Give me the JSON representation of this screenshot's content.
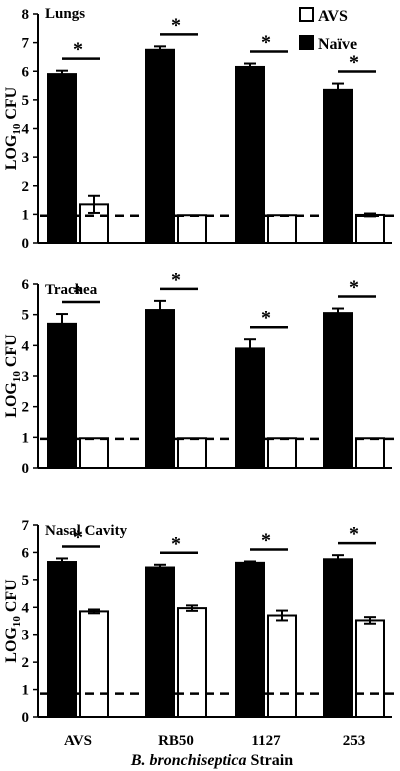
{
  "chart_data": [
    {
      "type": "bar",
      "title": "Lungs",
      "ylabel": "LOG10 CFU",
      "ylim": [
        0,
        8
      ],
      "yticks": [
        "0",
        "1",
        "2",
        "3",
        "4",
        "5",
        "6",
        "7",
        "8"
      ],
      "threshold": 0.95,
      "categories": [
        "AVS",
        "RB50",
        "1127",
        "253"
      ],
      "series": [
        {
          "name": "Naïve",
          "color": "#000000",
          "values": [
            5.9,
            6.75,
            6.15,
            5.35
          ],
          "errors": [
            0.12,
            0.12,
            0.12,
            0.22
          ]
        },
        {
          "name": "AVS",
          "color": "#ffffff",
          "values": [
            1.35,
            0.97,
            0.97,
            0.98
          ],
          "errors": [
            0.3,
            0.0,
            0.0,
            0.05
          ]
        }
      ],
      "significance": [
        "*",
        "*",
        "*",
        "*"
      ]
    },
    {
      "type": "bar",
      "title": "Trachea",
      "ylabel": "LOG10 CFU",
      "ylim": [
        0,
        6
      ],
      "yticks": [
        "0",
        "1",
        "2",
        "3",
        "4",
        "5",
        "6"
      ],
      "threshold": 0.95,
      "categories": [
        "AVS",
        "RB50",
        "1127",
        "253"
      ],
      "series": [
        {
          "name": "Naïve",
          "color": "#000000",
          "values": [
            4.7,
            5.15,
            3.9,
            5.05
          ],
          "errors": [
            0.32,
            0.3,
            0.3,
            0.15
          ]
        },
        {
          "name": "AVS",
          "color": "#ffffff",
          "values": [
            0.97,
            0.97,
            0.97,
            0.97
          ],
          "errors": [
            0,
            0,
            0,
            0
          ]
        }
      ],
      "significance": [
        "*",
        "*",
        "*",
        "*"
      ]
    },
    {
      "type": "bar",
      "title": "Nasal Cavity",
      "ylabel": "LOG10 CFU",
      "ylim": [
        0,
        7
      ],
      "yticks": [
        "0",
        "1",
        "2",
        "3",
        "4",
        "5",
        "6",
        "7"
      ],
      "threshold": 0.85,
      "categories": [
        "AVS",
        "RB50",
        "1127",
        "253"
      ],
      "series": [
        {
          "name": "Naïve",
          "color": "#000000",
          "values": [
            5.65,
            5.45,
            5.62,
            5.75
          ],
          "errors": [
            0.13,
            0.1,
            0.05,
            0.15
          ]
        },
        {
          "name": "AVS",
          "color": "#ffffff",
          "values": [
            3.85,
            3.97,
            3.7,
            3.52
          ],
          "errors": [
            0.07,
            0.1,
            0.18,
            0.12
          ]
        }
      ],
      "significance": [
        "*",
        "*",
        "*",
        "*"
      ]
    }
  ],
  "legend": [
    {
      "label": "AVS",
      "fill": "#ffffff"
    },
    {
      "label": "Naïve",
      "fill": "#000000"
    }
  ],
  "xlabel": {
    "italic": "B. bronchiseptica",
    "plain": " Strain"
  }
}
